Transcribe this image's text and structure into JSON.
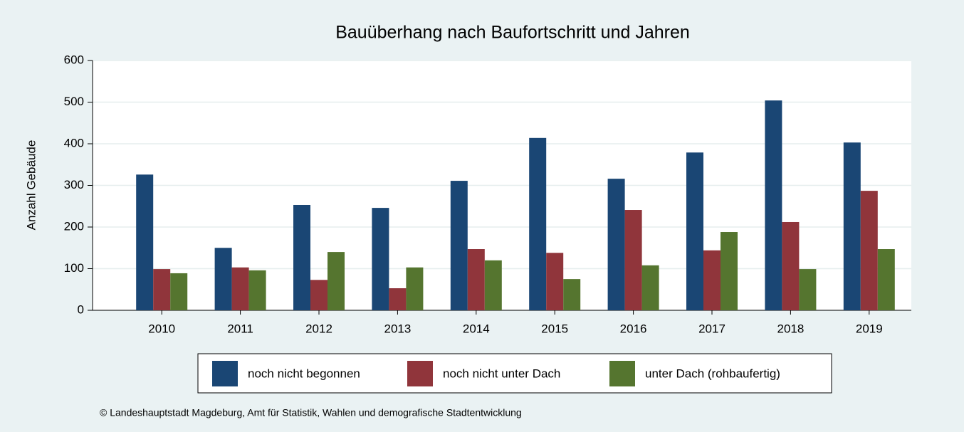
{
  "chart_data": {
    "type": "bar",
    "title": "Bauüberhang nach Baufortschritt und Jahren",
    "y_label": "Anzahl Gebäude",
    "footer": "© Landeshauptstadt Magdeburg, Amt für Statistik, Wahlen und demografische Stadtentwicklung",
    "categories": [
      "2010",
      "2011",
      "2012",
      "2013",
      "2014",
      "2015",
      "2016",
      "2017",
      "2018",
      "2019"
    ],
    "series": [
      {
        "name": "noch nicht begonnen",
        "color": "#1a4674",
        "values": [
          326,
          150,
          253,
          246,
          311,
          414,
          316,
          379,
          504,
          403
        ]
      },
      {
        "name": "noch nicht unter Dach",
        "color": "#90353b",
        "values": [
          99,
          103,
          73,
          53,
          147,
          138,
          241,
          144,
          212,
          287
        ]
      },
      {
        "name": "unter Dach (rohbaufertig)",
        "color": "#55752f",
        "values": [
          89,
          96,
          140,
          103,
          120,
          75,
          108,
          188,
          99,
          147
        ]
      }
    ],
    "ylim": [
      0,
      600
    ],
    "yticks": [
      0,
      100,
      200,
      300,
      400,
      500,
      600
    ],
    "grid": true,
    "legend": "bottom"
  }
}
